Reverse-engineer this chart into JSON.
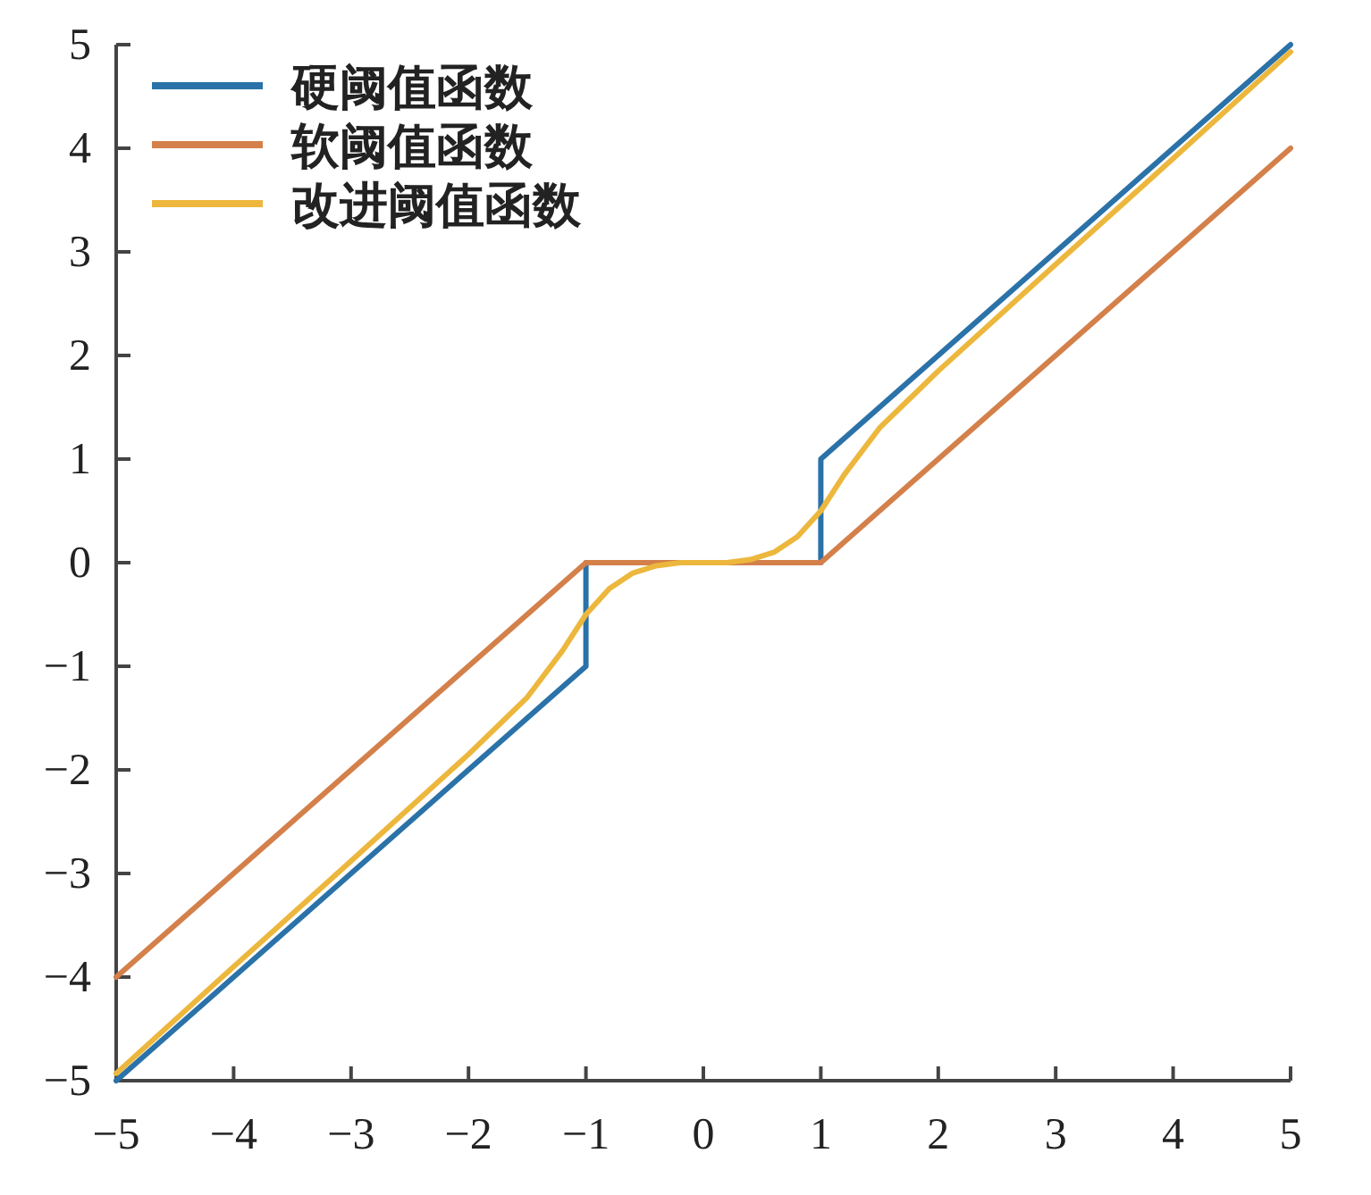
{
  "chart_data": {
    "type": "line",
    "xlim": [
      -5,
      5
    ],
    "ylim": [
      -5,
      5
    ],
    "xticks": [
      {
        "value": -5,
        "label": "−5"
      },
      {
        "value": -4,
        "label": "−4"
      },
      {
        "value": -3,
        "label": "−3"
      },
      {
        "value": -2,
        "label": "−2"
      },
      {
        "value": -1,
        "label": "−1"
      },
      0,
      1,
      2,
      3,
      4,
      5
    ],
    "yticks": [
      {
        "value": -5,
        "label": "−5"
      },
      {
        "value": -4,
        "label": "−4"
      },
      {
        "value": -3,
        "label": "−3"
      },
      {
        "value": -2,
        "label": "−2"
      },
      {
        "value": -1,
        "label": "−1"
      },
      0,
      1,
      2,
      3,
      4,
      5
    ],
    "grid": false,
    "legend": "top left",
    "marker": "none",
    "line_style": "solid",
    "series": [
      {
        "name": "硬阈值函数",
        "color": "#2a72a8",
        "x": [
          -5,
          -1,
          -1,
          1,
          1,
          5
        ],
        "values": [
          -5,
          -1,
          0,
          0,
          1,
          5
        ]
      },
      {
        "name": "软阈值函数",
        "color": "#d4804a",
        "x": [
          -5,
          -1,
          1,
          5
        ],
        "values": [
          -4,
          0,
          0,
          4
        ]
      },
      {
        "name": "改进阈值函数",
        "color": "#ecb73c",
        "x": [
          -5,
          -4,
          -3,
          -2,
          -1.5,
          -1.2,
          -1,
          -0.8,
          -0.6,
          -0.4,
          -0.2,
          0,
          0.2,
          0.4,
          0.6,
          0.8,
          1,
          1.2,
          1.5,
          2,
          3,
          4,
          5
        ],
        "values": [
          -4.93,
          -3.9,
          -2.88,
          -1.85,
          -1.3,
          -0.85,
          -0.5,
          -0.25,
          -0.1,
          -0.03,
          0,
          0,
          0,
          0.03,
          0.1,
          0.25,
          0.5,
          0.85,
          1.3,
          1.85,
          2.88,
          3.9,
          4.93
        ]
      }
    ]
  }
}
